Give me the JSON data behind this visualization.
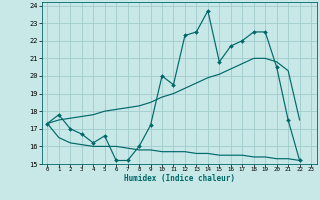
{
  "xlabel": "Humidex (Indice chaleur)",
  "xlim": [
    -0.5,
    23.5
  ],
  "ylim": [
    15,
    24.2
  ],
  "yticks": [
    15,
    16,
    17,
    18,
    19,
    20,
    21,
    22,
    23,
    24
  ],
  "xticks": [
    0,
    1,
    2,
    3,
    4,
    5,
    6,
    7,
    8,
    9,
    10,
    11,
    12,
    13,
    14,
    15,
    16,
    17,
    18,
    19,
    20,
    21,
    22,
    23
  ],
  "bg_color": "#c8e8e8",
  "grid_color": "#a0cccc",
  "line_color": "#006868",
  "line1_x": [
    0,
    1,
    2,
    3,
    4,
    5,
    6,
    7,
    8,
    9,
    10,
    11,
    12,
    13,
    14,
    15,
    16,
    17,
    18,
    19,
    20,
    21,
    22
  ],
  "line1_y": [
    17.3,
    17.8,
    17.0,
    16.7,
    16.2,
    16.6,
    15.2,
    15.2,
    16.0,
    17.2,
    20.0,
    19.5,
    22.3,
    22.5,
    23.7,
    20.8,
    21.7,
    22.0,
    22.5,
    22.5,
    20.5,
    17.5,
    15.2
  ],
  "line2_x": [
    0,
    1,
    2,
    3,
    4,
    5,
    6,
    7,
    8,
    9,
    10,
    11,
    12,
    13,
    14,
    15,
    16,
    17,
    18,
    19,
    20,
    21,
    22
  ],
  "line2_y": [
    17.3,
    17.5,
    17.6,
    17.7,
    17.8,
    18.0,
    18.1,
    18.2,
    18.3,
    18.5,
    18.8,
    19.0,
    19.3,
    19.6,
    19.9,
    20.1,
    20.4,
    20.7,
    21.0,
    21.0,
    20.8,
    20.3,
    17.5
  ],
  "line3_x": [
    0,
    1,
    2,
    3,
    4,
    5,
    6,
    7,
    8,
    9,
    10,
    11,
    12,
    13,
    14,
    15,
    16,
    17,
    18,
    19,
    20,
    21,
    22
  ],
  "line3_y": [
    17.3,
    16.5,
    16.2,
    16.1,
    16.0,
    16.0,
    16.0,
    15.9,
    15.8,
    15.8,
    15.7,
    15.7,
    15.7,
    15.6,
    15.6,
    15.5,
    15.5,
    15.5,
    15.4,
    15.4,
    15.3,
    15.3,
    15.2
  ]
}
